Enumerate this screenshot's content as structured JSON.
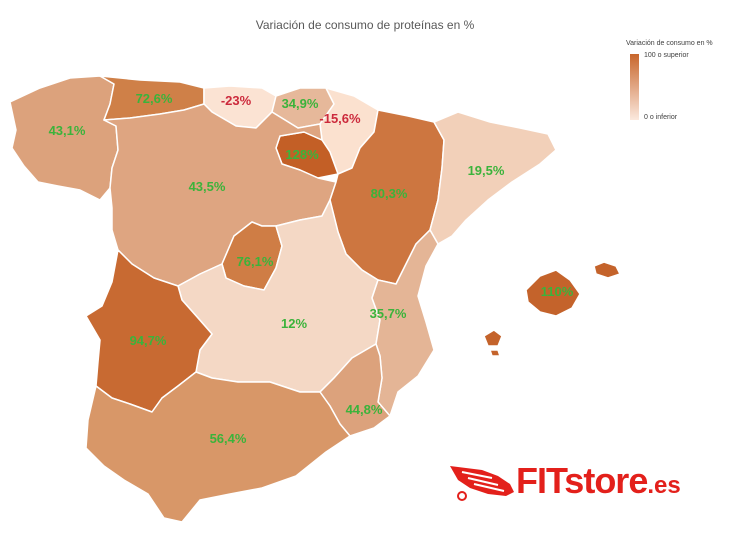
{
  "title": "Variación de consumo de proteínas en %",
  "legend": {
    "title": "Variación de consumo en %",
    "max_label": "100 o superior",
    "min_label": "0 o inferior",
    "color_high": "#c8662c",
    "color_low": "#fbe9de"
  },
  "regions": [
    {
      "id": "galicia",
      "value": "43,1%",
      "color": "#dca27c"
    },
    {
      "id": "asturias",
      "value": "72,6%",
      "color": "#cf8048"
    },
    {
      "id": "cantabria",
      "value": "-23%",
      "color": "#fbe3d3"
    },
    {
      "id": "pais-vasco",
      "value": "34,9%",
      "color": "#e6b89a"
    },
    {
      "id": "navarra",
      "value": "-15,6%",
      "color": "#fbe1cf"
    },
    {
      "id": "la-rioja",
      "value": "128%",
      "color": "#c35f26"
    },
    {
      "id": "castilla-leon",
      "value": "43,5%",
      "color": "#dea581"
    },
    {
      "id": "aragon",
      "value": "80,3%",
      "color": "#cd7640"
    },
    {
      "id": "cataluna",
      "value": "19,5%",
      "color": "#f2d0b9"
    },
    {
      "id": "madrid",
      "value": "76,1%",
      "color": "#cf7d45"
    },
    {
      "id": "castilla-la-mancha",
      "value": "12%",
      "color": "#f4d8c5"
    },
    {
      "id": "comunidad-valenciana",
      "value": "35,7%",
      "color": "#e4b596"
    },
    {
      "id": "baleares",
      "value": "110%",
      "color": "#c4632b"
    },
    {
      "id": "extremadura",
      "value": "94,7%",
      "color": "#c86a32"
    },
    {
      "id": "murcia",
      "value": "44,8%",
      "color": "#dca27c"
    },
    {
      "id": "andalucia",
      "value": "56,4%",
      "color": "#d89768"
    }
  ],
  "brand": {
    "name": "FITstore",
    "tld": ".es",
    "color": "#e3201b"
  }
}
